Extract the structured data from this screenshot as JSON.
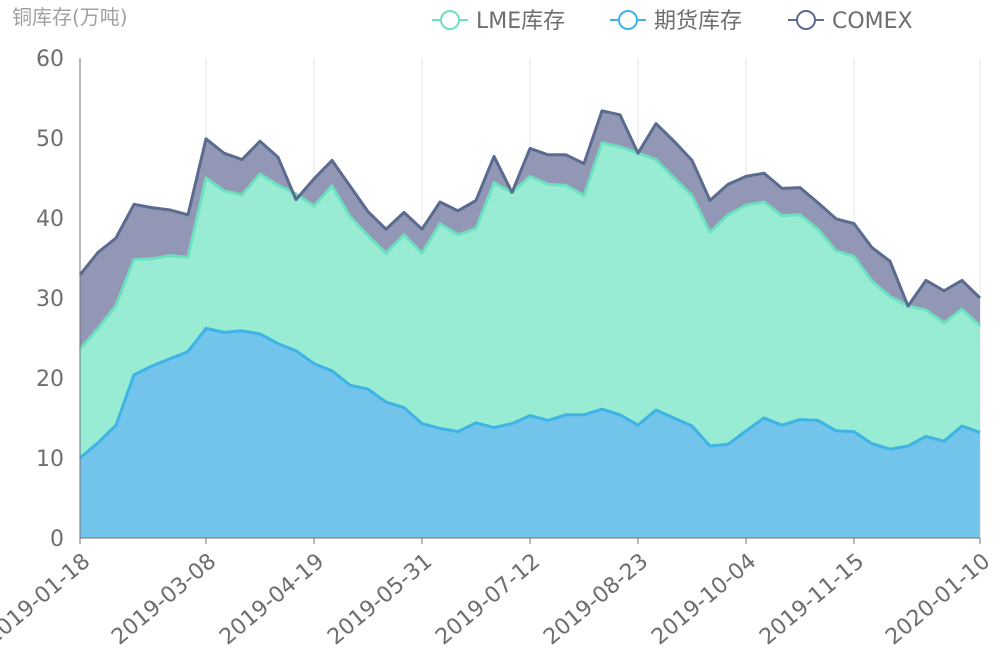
{
  "chart_data": {
    "type": "area",
    "stacked": true,
    "title": "",
    "ylabel": "铜库存(万吨)",
    "xlabel": "",
    "ylim": [
      0,
      60
    ],
    "y_ticks": [
      0,
      10,
      20,
      30,
      40,
      50,
      60
    ],
    "x_tick_labels": [
      "2019-01-18",
      "2019-03-08",
      "2019-04-19",
      "2019-05-31",
      "2019-07-12",
      "2019-08-23",
      "2019-10-04",
      "2019-11-15",
      "2020-01-10"
    ],
    "x_tick_index": [
      0,
      7,
      13,
      19,
      25,
      31,
      37,
      43,
      50
    ],
    "grid": "vertical",
    "legend_position": "top-right",
    "x": [
      "2019-01-18",
      "2019-01-25",
      "2019-02-01",
      "2019-02-15",
      "2019-02-22",
      "2019-03-01",
      "2019-03-08",
      "2019-03-15",
      "2019-03-22",
      "2019-03-29",
      "2019-04-04",
      "2019-04-12",
      "2019-04-19",
      "2019-04-26",
      "2019-05-03",
      "2019-05-10",
      "2019-05-17",
      "2019-05-24",
      "2019-05-31",
      "2019-06-06",
      "2019-06-14",
      "2019-06-21",
      "2019-06-28",
      "2019-07-05",
      "2019-07-12",
      "2019-07-19",
      "2019-07-26",
      "2019-08-02",
      "2019-08-09",
      "2019-08-16",
      "2019-08-23",
      "2019-08-30",
      "2019-09-06",
      "2019-09-12",
      "2019-09-20",
      "2019-09-27",
      "2019-10-04",
      "2019-10-11",
      "2019-10-18",
      "2019-10-25",
      "2019-11-01",
      "2019-11-08",
      "2019-11-15",
      "2019-11-22",
      "2019-11-29",
      "2019-12-06",
      "2019-12-13",
      "2019-12-20",
      "2019-12-27",
      "2020-01-03",
      "2020-01-10"
    ],
    "series": [
      {
        "name": "期货库存",
        "color": "#3eb4e6",
        "fill": "#73c4eb",
        "values": [
          10.0,
          11.9,
          14.1,
          20.4,
          21.5,
          22.4,
          23.3,
          26.2,
          25.7,
          25.9,
          25.5,
          24.3,
          23.4,
          21.8,
          20.9,
          19.1,
          18.6,
          17.0,
          16.3,
          14.3,
          13.7,
          13.3,
          14.4,
          13.8,
          14.3,
          15.3,
          14.7,
          15.4,
          15.4,
          16.1,
          15.4,
          14.1,
          16.0,
          15.0,
          14.0,
          11.5,
          11.7,
          13.4,
          15.0,
          14.1,
          14.8,
          14.7,
          13.4,
          13.3,
          11.8,
          11.1,
          11.5,
          12.7,
          12.1,
          14.0,
          13.2
        ]
      },
      {
        "name": "LME库存",
        "color": "#6de0c0",
        "fill": "#97ecd3",
        "values": [
          13.6,
          14.3,
          15.0,
          14.4,
          13.4,
          12.9,
          11.8,
          18.8,
          17.7,
          17.0,
          20.0,
          19.8,
          19.6,
          19.7,
          23.1,
          21.1,
          19.2,
          18.6,
          21.6,
          21.3,
          25.6,
          24.6,
          24.3,
          30.6,
          28.9,
          29.9,
          29.5,
          28.7,
          27.4,
          33.3,
          33.5,
          34.0,
          31.3,
          30.0,
          28.8,
          26.7,
          28.7,
          28.2,
          27.0,
          26.2,
          25.6,
          23.9,
          22.5,
          21.9,
          20.3,
          19.1,
          17.5,
          15.8,
          14.8,
          14.6,
          13.3
        ]
      },
      {
        "name": "COMEX",
        "color": "#5b6b90",
        "fill": "#9197b5",
        "values": [
          9.3,
          9.5,
          8.4,
          6.9,
          6.4,
          5.7,
          5.3,
          4.9,
          4.7,
          4.4,
          4.1,
          3.5,
          -0.7,
          3.4,
          3.2,
          3.8,
          3.0,
          3.0,
          2.8,
          3.0,
          2.7,
          3.0,
          3.5,
          3.3,
          0.0,
          3.5,
          3.7,
          3.8,
          4.0,
          4.0,
          4.0,
          0.0,
          4.5,
          4.6,
          4.4,
          4.0,
          3.8,
          3.6,
          3.6,
          3.4,
          3.4,
          3.3,
          4.0,
          4.1,
          4.2,
          4.4,
          0.0,
          3.7,
          4.0,
          3.6,
          3.5
        ]
      }
    ]
  }
}
